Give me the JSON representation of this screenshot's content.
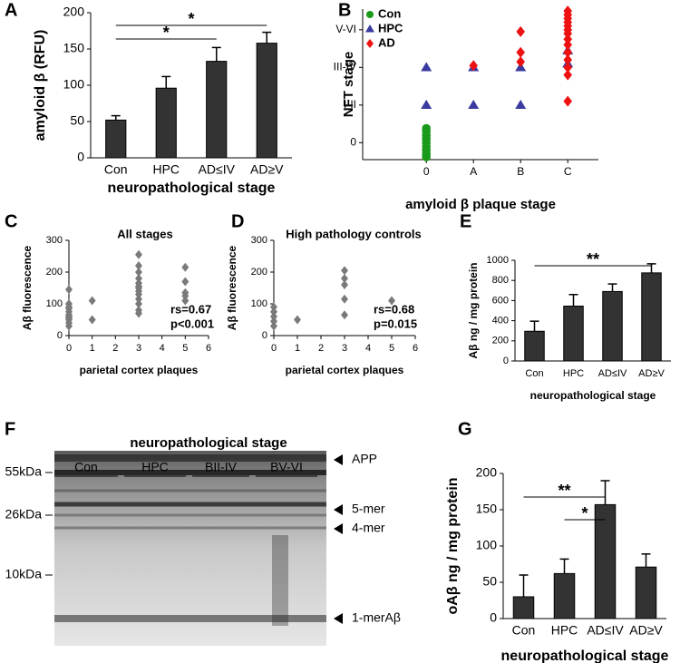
{
  "chart_data": [
    {
      "panel": "A",
      "type": "bar",
      "ylabel": "amyloid β (RFU)",
      "xlabel": "neuropathological stage",
      "categories": [
        "Con",
        "HPC",
        "AD≤IV",
        "AD≥V"
      ],
      "values": [
        52,
        96,
        133,
        158
      ],
      "errors": [
        6,
        16,
        19,
        15
      ],
      "color": "#333333",
      "ylim": [
        0,
        200
      ],
      "yticks": [
        0,
        50,
        100,
        150,
        200
      ],
      "significance": [
        {
          "from": 0,
          "to": 3,
          "label": "*"
        },
        {
          "from": 0,
          "to": 2,
          "label": "*"
        }
      ]
    },
    {
      "panel": "B",
      "type": "scatter",
      "ylabel": "NFT stage",
      "xlabel": "amyloid β plaque stage",
      "xlim": [
        -1.35,
        3.65
      ],
      "xticks": [
        0,
        {
          "value": 1,
          "label": "A"
        },
        {
          "value": 2,
          "label": "B"
        },
        {
          "value": 3,
          "label": "C"
        }
      ],
      "ylim": [
        -0.45,
        3.55
      ],
      "yticks": [
        0,
        {
          "value": 1,
          "label": "I-II"
        },
        {
          "value": 2,
          "label": "III-IV"
        },
        {
          "value": 3,
          "label": "V-VI"
        }
      ],
      "series": [
        {
          "name": "Con",
          "color": "#1a9a1a",
          "marker": "circle",
          "x": [
            0,
            0,
            0,
            0,
            0,
            0,
            0,
            0,
            0
          ],
          "values": [
            -0.38,
            -0.3,
            -0.2,
            -0.1,
            0,
            0.1,
            0.2,
            0.3,
            0.38
          ]
        },
        {
          "name": "HPC",
          "color": "#3a3aa0",
          "marker": "triangle",
          "x": [
            0,
            0,
            1,
            1,
            2,
            2,
            3,
            3
          ],
          "values": [
            1,
            2,
            1,
            2,
            1,
            2,
            2.1,
            2.45
          ]
        },
        {
          "name": "AD",
          "color": "#ee1111",
          "marker": "diamond",
          "x": [
            1,
            2,
            2,
            2,
            3,
            3,
            3,
            3,
            3,
            3,
            3,
            3,
            3,
            3,
            3,
            3,
            3,
            3
          ],
          "values": [
            2.05,
            2.15,
            2.4,
            2.95,
            1.1,
            1.8,
            2.0,
            2.2,
            2.4,
            2.6,
            2.75,
            2.9,
            3.0,
            3.1,
            3.2,
            3.3,
            3.4,
            3.5
          ]
        }
      ]
    },
    {
      "panel": "C",
      "type": "scatter",
      "title": "All stages",
      "ylabel": "Aβ fluorescence",
      "xlabel": "parietal cortex plaques",
      "xlim": [
        0,
        6
      ],
      "xticks": [
        0,
        1,
        2,
        3,
        4,
        5,
        6
      ],
      "ylim": [
        0,
        300
      ],
      "yticks": [
        0,
        100,
        200,
        300
      ],
      "annotations": [
        "rs=0.67",
        "p<0.001"
      ],
      "series": [
        {
          "color": "#7a7a7a",
          "marker": "diamond",
          "x": [
            0,
            0,
            0,
            0,
            0,
            0,
            0,
            0,
            0,
            0,
            0,
            1,
            1,
            3,
            3,
            3,
            3,
            3,
            3,
            3,
            3,
            3,
            3,
            3,
            3,
            3,
            5,
            5,
            5,
            5,
            5
          ],
          "values": [
            145,
            100,
            90,
            85,
            75,
            65,
            60,
            55,
            50,
            40,
            30,
            110,
            50,
            255,
            220,
            200,
            180,
            165,
            155,
            150,
            140,
            130,
            115,
            100,
            80,
            70,
            215,
            170,
            135,
            125,
            110
          ]
        }
      ]
    },
    {
      "panel": "D",
      "type": "scatter",
      "title": "High pathology controls",
      "ylabel": "Aβ  fluorescence",
      "xlabel": "parietal cortex plaques",
      "xlim": [
        0,
        6
      ],
      "xticks": [
        0,
        1,
        2,
        3,
        4,
        5,
        6
      ],
      "ylim": [
        0,
        300
      ],
      "yticks": [
        0,
        100,
        200,
        300
      ],
      "annotations": [
        "rs=0.68",
        "p=0.015"
      ],
      "series": [
        {
          "color": "#7a7a7a",
          "marker": "diamond",
          "x": [
            0,
            0,
            0,
            0,
            0,
            1,
            3,
            3,
            3,
            3,
            3,
            5
          ],
          "values": [
            90,
            75,
            60,
            45,
            30,
            50,
            205,
            180,
            160,
            115,
            65,
            110
          ]
        }
      ]
    },
    {
      "panel": "E",
      "type": "bar",
      "ylabel": "Aβ ng / mg protein",
      "xlabel": "neuropathological stage",
      "categories": [
        "Con",
        "HPC",
        "AD≤IV",
        "AD≥V"
      ],
      "values": [
        295,
        545,
        690,
        875
      ],
      "errors": [
        100,
        115,
        75,
        90
      ],
      "color": "#333333",
      "ylim": [
        0,
        1000
      ],
      "yticks": [
        0,
        200,
        400,
        600,
        800,
        1000
      ],
      "significance": [
        {
          "from": 0,
          "to": 3,
          "label": "**"
        }
      ]
    },
    {
      "panel": "F",
      "type": "blot",
      "title": "neuropathological stage",
      "groups": [
        "Con",
        "HPC",
        "BII-IV",
        "BV-VI"
      ],
      "size_markers": [
        "55kDa",
        "26kDa",
        "10kDa"
      ],
      "band_labels": [
        "APP",
        "5-mer",
        "4-mer",
        "1-merAβ"
      ]
    },
    {
      "panel": "G",
      "type": "bar",
      "ylabel": "oAβ ng / mg protein",
      "xlabel": "neuropathological stage",
      "categories": [
        "Con",
        "HPC",
        "AD≤IV",
        "AD≥V"
      ],
      "values": [
        30,
        62,
        157,
        71
      ],
      "errors": [
        30,
        20,
        33,
        18
      ],
      "color": "#333333",
      "ylim": [
        0,
        200
      ],
      "yticks": [
        0,
        50,
        100,
        150,
        200
      ],
      "significance": [
        {
          "from": 0,
          "to": 2,
          "label": "**"
        },
        {
          "from": 1,
          "to": 2,
          "label": "*"
        }
      ]
    }
  ]
}
